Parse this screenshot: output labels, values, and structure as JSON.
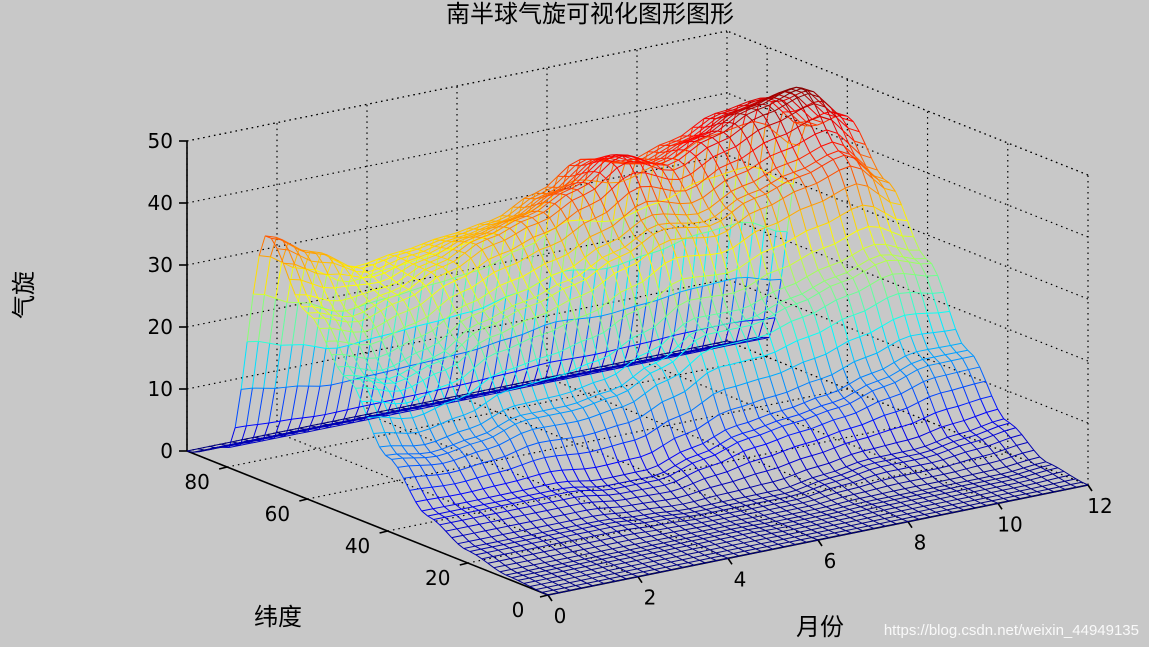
{
  "chart_data": {
    "type": "surface",
    "title": "南半球气旋可视化图形图形",
    "xlabel": "月份",
    "ylabel": "纬度",
    "zlabel": "气旋",
    "x_ticks": [
      0,
      2,
      4,
      6,
      8,
      10,
      12
    ],
    "y_ticks": [
      0,
      20,
      40,
      60,
      80
    ],
    "z_ticks": [
      0,
      10,
      20,
      30,
      40,
      50
    ],
    "xlim": [
      0,
      12
    ],
    "ylim": [
      0,
      90
    ],
    "zlim": [
      0,
      50
    ],
    "grid": true,
    "colormap": "jet",
    "latitudes": [
      90,
      80,
      70,
      60,
      50,
      40,
      30,
      20,
      10,
      0
    ],
    "profiles": [
      {
        "month": 0,
        "values": [
          0,
          3,
          40,
          30,
          22,
          12,
          5,
          2,
          0.5,
          0
        ]
      },
      {
        "month": 1,
        "values": [
          0,
          3,
          36,
          28,
          20,
          11,
          5,
          2,
          0.5,
          0
        ]
      },
      {
        "month": 2,
        "values": [
          0,
          3,
          32,
          30,
          22,
          12,
          5,
          2,
          0.5,
          0
        ]
      },
      {
        "month": 3,
        "values": [
          0,
          3,
          33,
          33,
          26,
          14,
          5,
          2,
          0.5,
          0
        ]
      },
      {
        "month": 4,
        "values": [
          0,
          3,
          34,
          36,
          28,
          14,
          4,
          1.5,
          0.5,
          0
        ]
      },
      {
        "month": 5,
        "values": [
          0,
          3,
          35,
          38,
          30,
          15,
          4,
          1,
          0.5,
          0
        ]
      },
      {
        "month": 6,
        "values": [
          0,
          3,
          38,
          41,
          33,
          18,
          6,
          1,
          0.3,
          0
        ]
      },
      {
        "month": 7,
        "values": [
          0,
          3,
          42,
          45,
          36,
          22,
          8,
          1,
          0.3,
          0
        ]
      },
      {
        "month": 8,
        "values": [
          0,
          3,
          40,
          42,
          35,
          22,
          9,
          2,
          0.5,
          0
        ]
      },
      {
        "month": 9,
        "values": [
          0,
          3,
          42,
          45,
          38,
          24,
          10,
          3,
          0.5,
          0
        ]
      },
      {
        "month": 10,
        "values": [
          0,
          3,
          45,
          48,
          40,
          26,
          12,
          3,
          0.5,
          0
        ]
      },
      {
        "month": 11,
        "values": [
          0,
          3,
          46,
          50,
          42,
          28,
          14,
          4,
          0.5,
          0
        ]
      },
      {
        "month": 12,
        "values": [
          0,
          3,
          40,
          44,
          36,
          26,
          14,
          5,
          1,
          0
        ]
      }
    ]
  },
  "watermark": "https://blog.csdn.net/weixin_44949135"
}
